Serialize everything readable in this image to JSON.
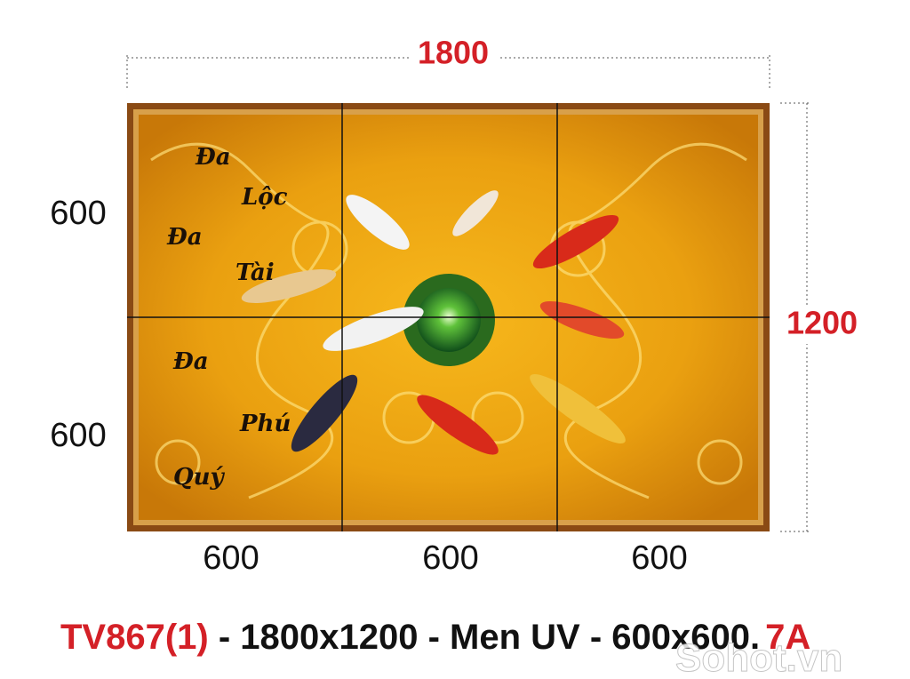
{
  "dimensions": {
    "width": "1800",
    "height": "1200",
    "rows": [
      "600",
      "600"
    ],
    "columns": [
      "600",
      "600",
      "600"
    ]
  },
  "panel_text": [
    "Đa",
    "Lộc",
    "Đa",
    "Tài",
    "Đa",
    "Phú",
    "Quý"
  ],
  "caption": {
    "code": "TV867(1)",
    "details": " - 1800x1200 - Men UV - 600x600.",
    "suffix": "7A"
  },
  "watermark": "Sohot.vn"
}
